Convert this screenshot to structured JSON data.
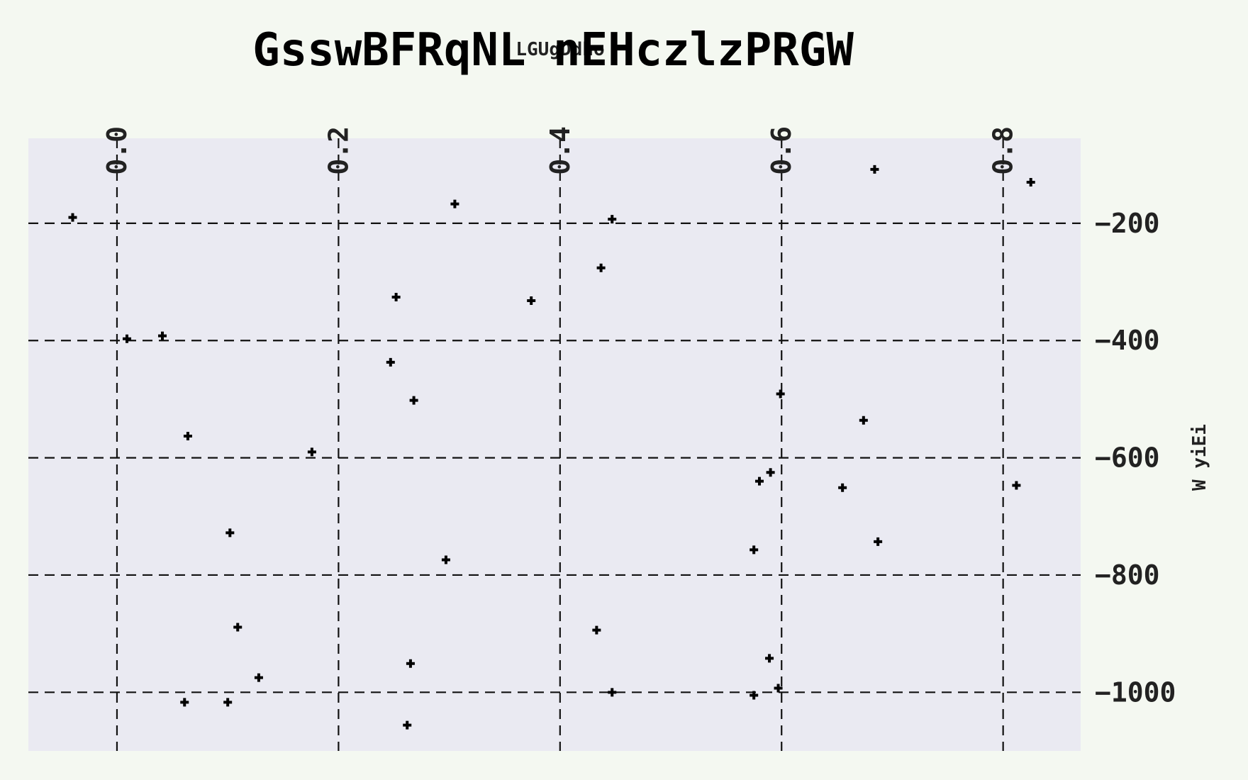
{
  "chart_data": {
    "type": "scatter",
    "title": "GsswBFRqNL nEHczlzPRGW",
    "xlabel": "LGUgDdho",
    "ylabel": "W yiEi",
    "x_axis_position": "top",
    "y_axis_position": "right",
    "x_ticks": [
      "0.0",
      "0.2",
      "0.4",
      "0.6",
      "0.8"
    ],
    "y_ticks": [
      "−200",
      "−400",
      "−600",
      "−800",
      "−1000"
    ],
    "xlim": [
      -0.08,
      0.87
    ],
    "ylim": [
      -1100,
      -55
    ],
    "grid": true,
    "marker": "plus",
    "colors": {
      "page_background": "#f4f8f1",
      "plot_background": "#eaeaf2",
      "grid": "#111111",
      "marker": "#000000"
    },
    "points": [
      {
        "x": -0.04,
        "y": -190
      },
      {
        "x": 0.305,
        "y": -167
      },
      {
        "x": 0.447,
        "y": -193
      },
      {
        "x": 0.684,
        "y": -108
      },
      {
        "x": 0.825,
        "y": -130
      },
      {
        "x": 0.437,
        "y": -276
      },
      {
        "x": 0.252,
        "y": -326
      },
      {
        "x": 0.374,
        "y": -332
      },
      {
        "x": 0.009,
        "y": -397
      },
      {
        "x": 0.041,
        "y": -392
      },
      {
        "x": 0.247,
        "y": -437
      },
      {
        "x": 0.268,
        "y": -502
      },
      {
        "x": 0.599,
        "y": -491
      },
      {
        "x": 0.674,
        "y": -536
      },
      {
        "x": 0.064,
        "y": -563
      },
      {
        "x": 0.176,
        "y": -590
      },
      {
        "x": 0.58,
        "y": -640
      },
      {
        "x": 0.59,
        "y": -625
      },
      {
        "x": 0.655,
        "y": -651
      },
      {
        "x": 0.812,
        "y": -647
      },
      {
        "x": 0.102,
        "y": -728
      },
      {
        "x": 0.297,
        "y": -774
      },
      {
        "x": 0.575,
        "y": -757
      },
      {
        "x": 0.687,
        "y": -743
      },
      {
        "x": 0.109,
        "y": -889
      },
      {
        "x": 0.433,
        "y": -894
      },
      {
        "x": 0.265,
        "y": -951
      },
      {
        "x": 0.589,
        "y": -942
      },
      {
        "x": 0.128,
        "y": -975
      },
      {
        "x": 0.061,
        "y": -1017
      },
      {
        "x": 0.1,
        "y": -1017
      },
      {
        "x": 0.447,
        "y": -1000
      },
      {
        "x": 0.575,
        "y": -1005
      },
      {
        "x": 0.597,
        "y": -993
      },
      {
        "x": 0.262,
        "y": -1056
      }
    ]
  }
}
